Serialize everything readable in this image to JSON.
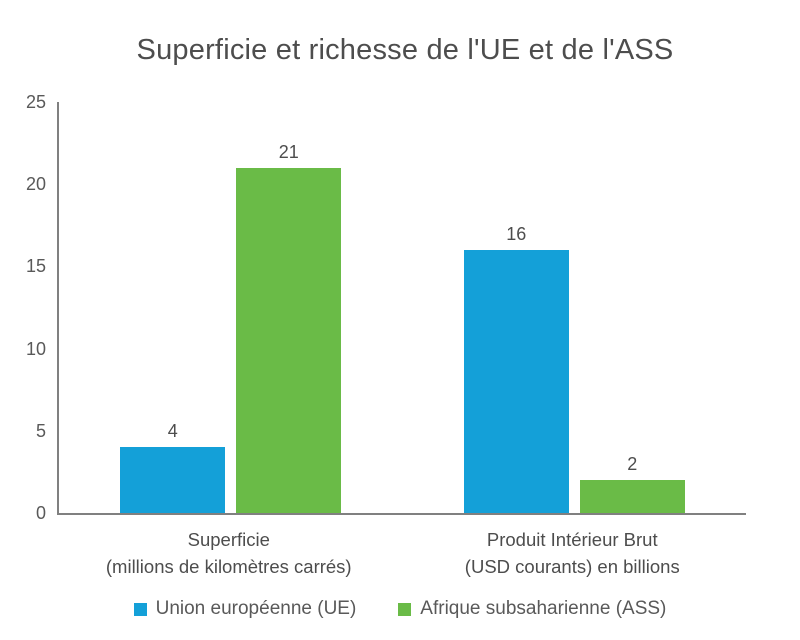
{
  "chart_data": {
    "type": "bar",
    "title": "Superficie et richesse de l'UE et de l'ASS",
    "categories": [
      {
        "label_lines": [
          "Superficie",
          "(millions de kilomètres carrés)"
        ]
      },
      {
        "label_lines": [
          "Produit Intérieur Brut",
          "(USD courants) en billions"
        ]
      }
    ],
    "series": [
      {
        "name": "Union européenne (UE)",
        "color": "#14a0d8",
        "values": [
          4,
          16
        ],
        "value_labels": [
          "4",
          "16"
        ]
      },
      {
        "name": "Afrique subsaharienne (ASS)",
        "color": "#6abb47",
        "values": [
          21,
          2
        ],
        "value_labels": [
          "21",
          "2"
        ]
      }
    ],
    "y_axis": {
      "min": 0,
      "max": 25,
      "tick_step": 5,
      "ticks": [
        "0",
        "5",
        "10",
        "15",
        "20",
        "25"
      ]
    },
    "xlabel": "",
    "ylabel": "",
    "grid": false,
    "legend_position": "bottom",
    "colors": {
      "axis_line": "#808080",
      "title_text": "#4d4d4d",
      "tick_text": "#595959",
      "category_text": "#4d4d4d",
      "value_label_text": "#4d4d4d",
      "legend_text": "#595959",
      "background": "#ffffff"
    }
  }
}
